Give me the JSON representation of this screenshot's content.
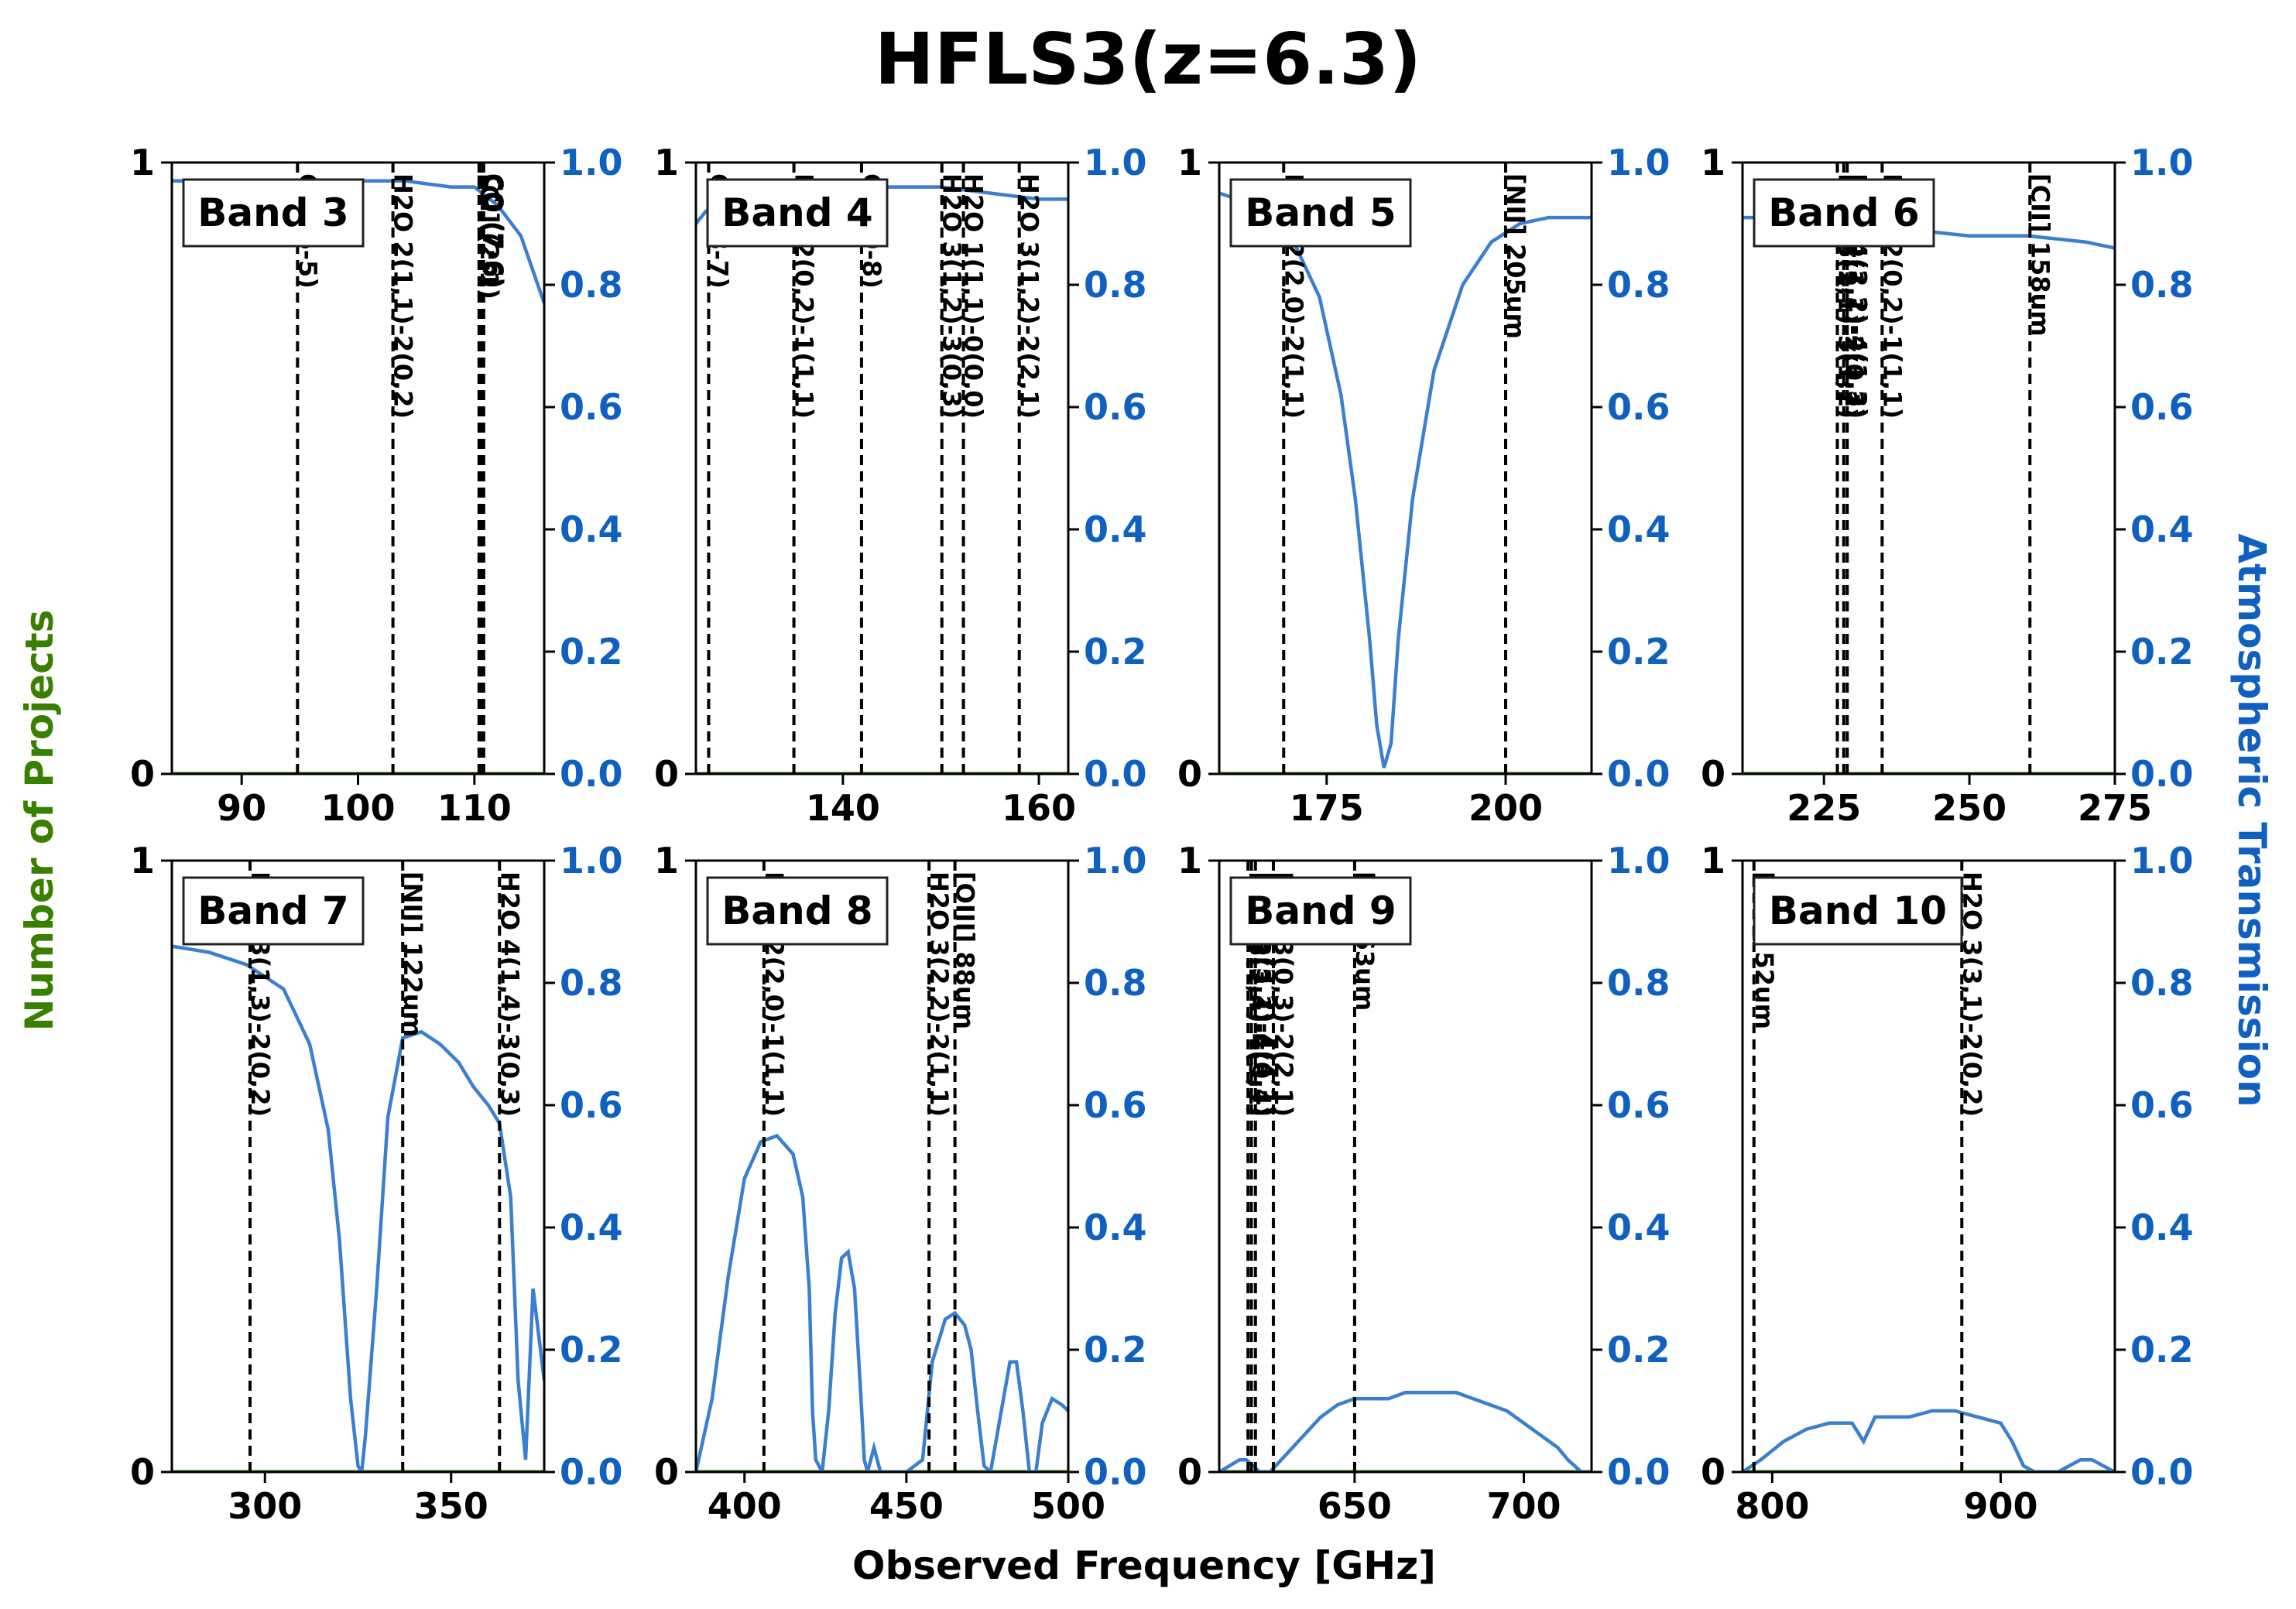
{
  "title": "HFLS3(z=6.3)",
  "xlabel": "Observed Frequency [GHz]",
  "ylabel_left": "Number of Projects",
  "ylabel_right": "Atmospheric Transmission",
  "colors": {
    "left_axis": "#3a8000",
    "right_axis": "#1060c0",
    "transmission": "#3a7fd0",
    "line_marker": "#000000",
    "axes": "#000000"
  },
  "chart_data": [
    {
      "type": "line",
      "band": "Band 3",
      "xlim": [
        84,
        116
      ],
      "xticks": [
        90,
        100,
        110
      ],
      "ylim_left": [
        0,
        1
      ],
      "yticks_left": [
        0,
        1
      ],
      "ylim_right": [
        0,
        1
      ],
      "yticks_right": [
        "0.0",
        "0.2",
        "0.4",
        "0.6",
        "0.8",
        "1.0"
      ],
      "lines": [
        {
          "freq": 94.8,
          "label": "CO (6-5)"
        },
        {
          "freq": 103.0,
          "label": "H2O 2(1,1)-2(0,2)"
        },
        {
          "freq": 110.4,
          "label": "[CI] (2-1)"
        },
        {
          "freq": 110.6,
          "label": "CO (7-6)"
        },
        {
          "freq": 110.8,
          "label": "CO (7-6)"
        }
      ],
      "transmission": {
        "x": [
          84,
          90,
          100,
          104,
          108,
          110,
          112,
          114,
          116
        ],
        "y": [
          0.97,
          0.97,
          0.97,
          0.97,
          0.96,
          0.96,
          0.93,
          0.88,
          0.77
        ]
      }
    },
    {
      "type": "line",
      "band": "Band 4",
      "xlim": [
        125,
        163
      ],
      "xticks": [
        140,
        160
      ],
      "ylim_left": [
        0,
        1
      ],
      "yticks_left": [
        0,
        1
      ],
      "ylim_right": [
        0,
        1
      ],
      "yticks_right": [
        "0.0",
        "0.2",
        "0.4",
        "0.6",
        "0.8",
        "1.0"
      ],
      "lines": [
        {
          "freq": 126.3,
          "label": "CO (8-7)"
        },
        {
          "freq": 135.0,
          "label": "H2O 2(0,2)-1(1,1)"
        },
        {
          "freq": 141.9,
          "label": "CO (9-8)"
        },
        {
          "freq": 150.1,
          "label": "H2O 3(1,2)-3(0,3)"
        },
        {
          "freq": 152.3,
          "label": "H2O 1(1,1)-0(0,0)"
        },
        {
          "freq": 158.0,
          "label": "H2O 3(1,2)-2(2,1)"
        }
      ],
      "transmission": {
        "x": [
          125,
          126,
          128,
          130,
          135,
          140,
          145,
          150,
          155,
          160,
          163
        ],
        "y": [
          0.9,
          0.92,
          0.94,
          0.95,
          0.96,
          0.96,
          0.96,
          0.96,
          0.95,
          0.94,
          0.94
        ]
      }
    },
    {
      "type": "line",
      "band": "Band 5",
      "xlim": [
        160,
        212
      ],
      "xticks": [
        175,
        200
      ],
      "ylim_left": [
        0,
        1
      ],
      "yticks_left": [
        0,
        1
      ],
      "ylim_right": [
        0,
        1
      ],
      "yticks_right": [
        "0.0",
        "0.2",
        "0.4",
        "0.6",
        "0.8",
        "1.0"
      ],
      "lines": [
        {
          "freq": 169.0,
          "label": "H2O 2(2,0)-2(1,1)"
        },
        {
          "freq": 200.0,
          "label": "[NII] 205um"
        }
      ],
      "transmission": {
        "x": [
          160,
          165,
          170,
          174,
          177,
          179,
          181,
          182,
          183,
          184,
          185,
          187,
          190,
          194,
          198,
          202,
          206,
          210,
          212
        ],
        "y": [
          0.95,
          0.93,
          0.88,
          0.78,
          0.62,
          0.45,
          0.22,
          0.08,
          0.01,
          0.05,
          0.22,
          0.45,
          0.66,
          0.8,
          0.87,
          0.9,
          0.91,
          0.91,
          0.91
        ]
      }
    },
    {
      "type": "line",
      "band": "Band 6",
      "xlim": [
        211,
        275
      ],
      "xticks": [
        225,
        250,
        275
      ],
      "ylim_left": [
        0,
        1
      ],
      "yticks_left": [
        0,
        1
      ],
      "ylim_right": [
        0,
        1
      ],
      "yticks_right": [
        "0.0",
        "0.2",
        "0.4",
        "0.6",
        "0.8",
        "1.0"
      ],
      "lines": [
        {
          "freq": 227.3,
          "label": "H2O 3(2,1)-3(1,2)"
        },
        {
          "freq": 228.4,
          "label": "H2O 2(1,1)-2(0,2)"
        },
        {
          "freq": 229.0,
          "label": "H2O 4(2,2)-4(1,3)"
        },
        {
          "freq": 235.0,
          "label": "H2O 2(0,2)-1(1,1)"
        },
        {
          "freq": 260.4,
          "label": "[CII] 158um"
        }
      ],
      "transmission": {
        "x": [
          211,
          220,
          230,
          240,
          250,
          260,
          270,
          275
        ],
        "y": [
          0.91,
          0.91,
          0.9,
          0.89,
          0.88,
          0.88,
          0.87,
          0.86
        ]
      }
    },
    {
      "type": "line",
      "band": "Band 7",
      "xlim": [
        275,
        375
      ],
      "xticks": [
        300,
        350
      ],
      "ylim_left": [
        0,
        1
      ],
      "yticks_left": [
        0,
        1
      ],
      "ylim_right": [
        0,
        1
      ],
      "yticks_right": [
        "0.0",
        "0.2",
        "0.4",
        "0.6",
        "0.8",
        "1.0"
      ],
      "lines": [
        {
          "freq": 296.0,
          "label": "H2O 3(1,3)-2(0,2)"
        },
        {
          "freq": 337.0,
          "label": "[NII] 122um"
        },
        {
          "freq": 363.0,
          "label": "H2O 4(1,4)-3(0,3)"
        }
      ],
      "transmission": {
        "x": [
          275,
          285,
          295,
          305,
          312,
          317,
          320,
          323,
          325,
          326,
          327,
          330,
          333,
          337,
          342,
          347,
          352,
          356,
          360,
          363,
          366,
          368,
          370,
          372,
          375
        ],
        "y": [
          0.86,
          0.85,
          0.83,
          0.79,
          0.7,
          0.56,
          0.38,
          0.12,
          0.01,
          0.0,
          0.06,
          0.3,
          0.58,
          0.71,
          0.72,
          0.7,
          0.67,
          0.63,
          0.6,
          0.57,
          0.45,
          0.15,
          0.02,
          0.3,
          0.15
        ]
      }
    },
    {
      "type": "line",
      "band": "Band 8",
      "xlim": [
        385,
        500
      ],
      "xticks": [
        400,
        450,
        500
      ],
      "ylim_left": [
        0,
        1
      ],
      "yticks_left": [
        0,
        1
      ],
      "ylim_right": [
        0,
        1
      ],
      "yticks_right": [
        "0.0",
        "0.2",
        "0.4",
        "0.6",
        "0.8",
        "1.0"
      ],
      "lines": [
        {
          "freq": 406.0,
          "label": "H2O 2(2,0)-1(1,1)"
        },
        {
          "freq": 457.0,
          "label": "H2O 3(2,2)-2(1,1)"
        },
        {
          "freq": 465.0,
          "label": "[OIII] 88um"
        }
      ],
      "transmission": {
        "x": [
          385,
          390,
          395,
          400,
          405,
          410,
          415,
          418,
          420,
          421,
          422,
          424,
          426,
          428,
          430,
          432,
          434,
          436,
          437,
          438,
          440,
          442,
          445,
          450,
          455,
          458,
          462,
          465,
          468,
          470,
          472,
          474,
          476,
          480,
          482,
          484,
          486,
          488,
          490,
          492,
          495,
          498,
          500
        ],
        "y": [
          0.0,
          0.12,
          0.32,
          0.48,
          0.54,
          0.55,
          0.52,
          0.45,
          0.3,
          0.1,
          0.02,
          0.0,
          0.1,
          0.26,
          0.35,
          0.36,
          0.3,
          0.12,
          0.02,
          0.0,
          0.04,
          0.0,
          0.0,
          0.0,
          0.02,
          0.18,
          0.25,
          0.26,
          0.24,
          0.2,
          0.1,
          0.01,
          0.0,
          0.12,
          0.18,
          0.18,
          0.1,
          0.0,
          0.0,
          0.08,
          0.12,
          0.11,
          0.1
        ]
      }
    },
    {
      "type": "line",
      "band": "Band 9",
      "xlim": [
        610,
        720
      ],
      "xticks": [
        650,
        700
      ],
      "ylim_left": [
        0,
        1
      ],
      "yticks_left": [
        0,
        1
      ],
      "ylim_right": [
        0,
        1
      ],
      "yticks_right": [
        "0.0",
        "0.2",
        "0.4",
        "0.6",
        "0.8",
        "1.0"
      ],
      "lines": [
        {
          "freq": 618.5,
          "label": "H2O 5(2,4)-4(3,1)"
        },
        {
          "freq": 619.5,
          "label": "H2O 3(3,1)-4(0,4)"
        },
        {
          "freq": 620.7,
          "label": "H2O 5(3,2)-4(4,1)"
        },
        {
          "freq": 626.0,
          "label": "H2O 3(0,3)-2(2,1)"
        },
        {
          "freq": 650.0,
          "label": "[OI] 63um"
        }
      ],
      "transmission": {
        "x": [
          610,
          613,
          616,
          618,
          620,
          622,
          625,
          630,
          635,
          640,
          645,
          650,
          655,
          660,
          665,
          670,
          675,
          680,
          685,
          690,
          695,
          700,
          705,
          710,
          713,
          715,
          717,
          720
        ],
        "y": [
          0.0,
          0.01,
          0.02,
          0.02,
          0.01,
          0.0,
          0.0,
          0.03,
          0.06,
          0.09,
          0.11,
          0.12,
          0.12,
          0.12,
          0.13,
          0.13,
          0.13,
          0.13,
          0.12,
          0.11,
          0.1,
          0.08,
          0.06,
          0.04,
          0.02,
          0.01,
          0.0,
          0.0
        ]
      }
    },
    {
      "type": "line",
      "band": "Band 10",
      "xlim": [
        787,
        950
      ],
      "xticks": [
        800,
        900
      ],
      "ylim_left": [
        0,
        1
      ],
      "yticks_left": [
        0,
        1
      ],
      "ylim_right": [
        0,
        1
      ],
      "yticks_right": [
        "0.0",
        "0.2",
        "0.4",
        "0.6",
        "0.8",
        "1.0"
      ],
      "lines": [
        {
          "freq": 792.0,
          "label": "[OIII] 52um"
        },
        {
          "freq": 883.0,
          "label": "H2O 3(3,1)-2(0,2)"
        }
      ],
      "transmission": {
        "x": [
          787,
          795,
          805,
          815,
          825,
          835,
          840,
          845,
          850,
          860,
          870,
          880,
          890,
          900,
          905,
          910,
          915,
          920,
          925,
          930,
          935,
          940,
          945,
          950
        ],
        "y": [
          0.0,
          0.02,
          0.05,
          0.07,
          0.08,
          0.08,
          0.05,
          0.09,
          0.09,
          0.09,
          0.1,
          0.1,
          0.09,
          0.08,
          0.05,
          0.01,
          0.0,
          0.0,
          0.0,
          0.01,
          0.02,
          0.02,
          0.01,
          0.0
        ]
      }
    }
  ]
}
